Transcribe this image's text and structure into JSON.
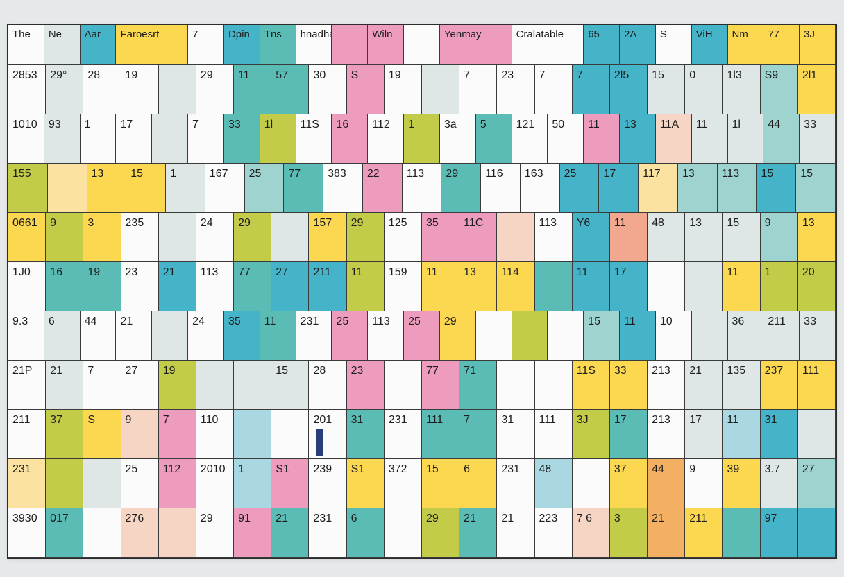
{
  "colors": {
    "yellow": "#fcd850",
    "lime": "#c2cc48",
    "teal": "#5bbcb6",
    "cyan": "#45b4c8",
    "pink": "#ee9cbd",
    "peach": "#f7d5c5",
    "orange": "#f4b062",
    "mint": "#9ed3d0",
    "ltgray": "#dfe6e6",
    "white": "#fbfbfb",
    "ltyellow": "#fbe2a0",
    "salmon": "#f2a88e",
    "ltblue": "#a9d8e2"
  },
  "grid": {
    "rows": [
      {
        "cells": [
          {
            "t": "The",
            "c": "white"
          },
          {
            "t": "Ne",
            "c": "ltgray"
          },
          {
            "t": "Aar",
            "c": "cyan"
          },
          {
            "t": "Faroesrt",
            "c": "yellow",
            "span": 2
          },
          {
            "t": "7",
            "c": "white"
          },
          {
            "t": "Dpin",
            "c": "cyan"
          },
          {
            "t": "Tns",
            "c": "teal"
          },
          {
            "t": "hnadhaur",
            "c": "white"
          },
          {
            "t": "",
            "c": "pink"
          },
          {
            "t": "Wiln",
            "c": "pink"
          },
          {
            "t": "",
            "c": "white"
          },
          {
            "t": "Yenmay",
            "c": "pink",
            "span": 2
          },
          {
            "t": "Cralatable",
            "c": "white",
            "span": 2
          },
          {
            "t": "65",
            "c": "cyan"
          },
          {
            "t": "2A",
            "c": "cyan"
          },
          {
            "t": "S",
            "c": "white"
          },
          {
            "t": "ViH",
            "c": "cyan"
          },
          {
            "t": "Nm",
            "c": "yellow"
          },
          {
            "t": "77",
            "c": "yellow"
          },
          {
            "t": "3J",
            "c": "yellow"
          }
        ]
      },
      {
        "cells": [
          {
            "t": "2853",
            "c": "white"
          },
          {
            "t": "29°",
            "c": "ltgray"
          },
          {
            "t": "28",
            "c": "white"
          },
          {
            "t": "19",
            "c": "white"
          },
          {
            "t": "",
            "c": "ltgray"
          },
          {
            "t": "29",
            "c": "white"
          },
          {
            "t": "11",
            "c": "teal"
          },
          {
            "t": "57",
            "c": "teal"
          },
          {
            "t": "30",
            "c": "white"
          },
          {
            "t": "S",
            "c": "pink"
          },
          {
            "t": "19",
            "c": "white"
          },
          {
            "t": "",
            "c": "ltgray"
          },
          {
            "t": "7",
            "c": "white"
          },
          {
            "t": "23",
            "c": "white"
          },
          {
            "t": "7",
            "c": "white"
          },
          {
            "t": "7",
            "c": "cyan"
          },
          {
            "t": "2l5",
            "c": "cyan"
          },
          {
            "t": "15",
            "c": "ltgray"
          },
          {
            "t": "0",
            "c": "ltgray"
          },
          {
            "t": "1l3",
            "c": "ltgray"
          },
          {
            "t": "S9",
            "c": "mint"
          },
          {
            "t": "2l1",
            "c": "yellow"
          }
        ]
      },
      {
        "cells": [
          {
            "t": "1010",
            "c": "white"
          },
          {
            "t": "93",
            "c": "ltgray"
          },
          {
            "t": "1",
            "c": "white"
          },
          {
            "t": "17",
            "c": "white"
          },
          {
            "t": "",
            "c": "ltgray"
          },
          {
            "t": "7",
            "c": "white"
          },
          {
            "t": "33",
            "c": "teal"
          },
          {
            "t": "1l",
            "c": "lime"
          },
          {
            "t": "11S",
            "c": "white"
          },
          {
            "t": "16",
            "c": "pink"
          },
          {
            "t": "112",
            "c": "white"
          },
          {
            "t": "1",
            "c": "lime"
          },
          {
            "t": "3a",
            "c": "white"
          },
          {
            "t": "5",
            "c": "teal"
          },
          {
            "t": "121",
            "c": "white"
          },
          {
            "t": "50",
            "c": "white"
          },
          {
            "t": "11",
            "c": "pink"
          },
          {
            "t": "13",
            "c": "cyan"
          },
          {
            "t": "11A",
            "c": "peach"
          },
          {
            "t": "11",
            "c": "ltgray"
          },
          {
            "t": "1l",
            "c": "ltgray"
          },
          {
            "t": "44",
            "c": "mint"
          },
          {
            "t": "33",
            "c": "ltgray"
          }
        ]
      },
      {
        "cells": [
          {
            "t": "155",
            "c": "lime"
          },
          {
            "t": "",
            "c": "ltyellow"
          },
          {
            "t": "13",
            "c": "yellow"
          },
          {
            "t": "15",
            "c": "yellow"
          },
          {
            "t": "1",
            "c": "ltgray"
          },
          {
            "t": "167",
            "c": "white"
          },
          {
            "t": "25",
            "c": "mint"
          },
          {
            "t": "77",
            "c": "teal"
          },
          {
            "t": "383",
            "c": "white"
          },
          {
            "t": "22",
            "c": "pink"
          },
          {
            "t": "113",
            "c": "white"
          },
          {
            "t": "29",
            "c": "teal"
          },
          {
            "t": "116",
            "c": "white"
          },
          {
            "t": "163",
            "c": "white"
          },
          {
            "t": "25",
            "c": "cyan"
          },
          {
            "t": "17",
            "c": "cyan"
          },
          {
            "t": "117",
            "c": "ltyellow"
          },
          {
            "t": "13",
            "c": "mint"
          },
          {
            "t": "113",
            "c": "mint"
          },
          {
            "t": "15",
            "c": "cyan"
          },
          {
            "t": "15",
            "c": "mint"
          }
        ]
      },
      {
        "cells": [
          {
            "t": "0661",
            "c": "yellow"
          },
          {
            "t": "9",
            "c": "lime"
          },
          {
            "t": "3",
            "c": "yellow"
          },
          {
            "t": "235",
            "c": "white"
          },
          {
            "t": "",
            "c": "ltgray"
          },
          {
            "t": "24",
            "c": "white"
          },
          {
            "t": "29",
            "c": "lime"
          },
          {
            "t": "",
            "c": "ltgray"
          },
          {
            "t": "157",
            "c": "yellow"
          },
          {
            "t": "29",
            "c": "lime"
          },
          {
            "t": "125",
            "c": "white"
          },
          {
            "t": "35",
            "c": "pink"
          },
          {
            "t": "11C",
            "c": "pink"
          },
          {
            "t": "",
            "c": "peach"
          },
          {
            "t": "113",
            "c": "white"
          },
          {
            "t": "Y6",
            "c": "cyan"
          },
          {
            "t": "11",
            "c": "salmon"
          },
          {
            "t": "48",
            "c": "ltgray"
          },
          {
            "t": "13",
            "c": "ltgray"
          },
          {
            "t": "15",
            "c": "ltgray"
          },
          {
            "t": "9",
            "c": "mint"
          },
          {
            "t": "13",
            "c": "yellow"
          }
        ]
      },
      {
        "cells": [
          {
            "t": "1J0",
            "c": "white"
          },
          {
            "t": "16",
            "c": "teal"
          },
          {
            "t": "19",
            "c": "teal"
          },
          {
            "t": "23",
            "c": "white"
          },
          {
            "t": "21",
            "c": "cyan"
          },
          {
            "t": "113",
            "c": "white"
          },
          {
            "t": "77",
            "c": "teal"
          },
          {
            "t": "27",
            "c": "cyan"
          },
          {
            "t": "211",
            "c": "cyan"
          },
          {
            "t": "11",
            "c": "lime"
          },
          {
            "t": "159",
            "c": "white"
          },
          {
            "t": "11",
            "c": "yellow"
          },
          {
            "t": "13",
            "c": "yellow"
          },
          {
            "t": "114",
            "c": "yellow"
          },
          {
            "t": "",
            "c": "teal"
          },
          {
            "t": "11",
            "c": "cyan"
          },
          {
            "t": "17",
            "c": "cyan"
          },
          {
            "t": "",
            "c": "white"
          },
          {
            "t": "",
            "c": "ltgray"
          },
          {
            "t": "11",
            "c": "yellow"
          },
          {
            "t": "1",
            "c": "lime"
          },
          {
            "t": "20",
            "c": "lime"
          }
        ]
      },
      {
        "cells": [
          {
            "t": "9.3",
            "c": "white"
          },
          {
            "t": "6",
            "c": "ltgray"
          },
          {
            "t": "44",
            "c": "white"
          },
          {
            "t": "21",
            "c": "white"
          },
          {
            "t": "",
            "c": "ltgray"
          },
          {
            "t": "24",
            "c": "white"
          },
          {
            "t": "35",
            "c": "cyan"
          },
          {
            "t": "11",
            "c": "teal"
          },
          {
            "t": "231",
            "c": "white"
          },
          {
            "t": "25",
            "c": "pink"
          },
          {
            "t": "113",
            "c": "white"
          },
          {
            "t": "25",
            "c": "pink"
          },
          {
            "t": "29",
            "c": "yellow"
          },
          {
            "t": "",
            "c": "white"
          },
          {
            "t": "",
            "c": "lime"
          },
          {
            "t": "",
            "c": "white"
          },
          {
            "t": "15",
            "c": "mint"
          },
          {
            "t": "11",
            "c": "cyan"
          },
          {
            "t": "10",
            "c": "white"
          },
          {
            "t": "",
            "c": "ltgray"
          },
          {
            "t": "36",
            "c": "ltgray"
          },
          {
            "t": "211",
            "c": "ltgray"
          },
          {
            "t": "33",
            "c": "ltgray"
          }
        ]
      },
      {
        "cells": [
          {
            "t": "21P",
            "c": "white"
          },
          {
            "t": "21",
            "c": "ltgray"
          },
          {
            "t": "7",
            "c": "white"
          },
          {
            "t": "27",
            "c": "white"
          },
          {
            "t": "19",
            "c": "lime"
          },
          {
            "t": "",
            "c": "ltgray"
          },
          {
            "t": "",
            "c": "ltgray"
          },
          {
            "t": "15",
            "c": "ltgray"
          },
          {
            "t": "28",
            "c": "white"
          },
          {
            "t": "23",
            "c": "pink"
          },
          {
            "t": "",
            "c": "white"
          },
          {
            "t": "77",
            "c": "pink"
          },
          {
            "t": "71",
            "c": "teal"
          },
          {
            "t": "",
            "c": "white"
          },
          {
            "t": "",
            "c": "white"
          },
          {
            "t": "11S",
            "c": "yellow"
          },
          {
            "t": "33",
            "c": "yellow"
          },
          {
            "t": "213",
            "c": "white"
          },
          {
            "t": "21",
            "c": "ltgray"
          },
          {
            "t": "135",
            "c": "ltgray"
          },
          {
            "t": "237",
            "c": "yellow"
          },
          {
            "t": "111",
            "c": "yellow"
          }
        ]
      },
      {
        "cells": [
          {
            "t": "211",
            "c": "white"
          },
          {
            "t": "37",
            "c": "lime"
          },
          {
            "t": "S",
            "c": "yellow"
          },
          {
            "t": "9",
            "c": "peach"
          },
          {
            "t": "7",
            "c": "pink"
          },
          {
            "t": "110",
            "c": "white"
          },
          {
            "t": "",
            "c": "ltblue"
          },
          {
            "t": "",
            "c": "white"
          },
          {
            "t": "201",
            "c": "white"
          },
          {
            "t": "31",
            "c": "teal"
          },
          {
            "t": "231",
            "c": "white"
          },
          {
            "t": "111",
            "c": "teal"
          },
          {
            "t": "7",
            "c": "teal"
          },
          {
            "t": "31",
            "c": "white"
          },
          {
            "t": "111",
            "c": "white"
          },
          {
            "t": "3J",
            "c": "lime"
          },
          {
            "t": "17",
            "c": "teal"
          },
          {
            "t": "213",
            "c": "white"
          },
          {
            "t": "17",
            "c": "ltgray"
          },
          {
            "t": "11",
            "c": "ltblue"
          },
          {
            "t": "31",
            "c": "cyan"
          },
          {
            "t": "",
            "c": "ltgray"
          }
        ]
      },
      {
        "cells": [
          {
            "t": "231",
            "c": "ltyellow"
          },
          {
            "t": "",
            "c": "lime"
          },
          {
            "t": "",
            "c": "ltgray"
          },
          {
            "t": "25",
            "c": "white"
          },
          {
            "t": "112",
            "c": "pink"
          },
          {
            "t": "2010",
            "c": "white"
          },
          {
            "t": "1",
            "c": "ltblue"
          },
          {
            "t": "S1",
            "c": "pink"
          },
          {
            "t": "239",
            "c": "white"
          },
          {
            "t": "S1",
            "c": "yellow"
          },
          {
            "t": "372",
            "c": "white"
          },
          {
            "t": "15",
            "c": "yellow"
          },
          {
            "t": "6",
            "c": "yellow"
          },
          {
            "t": "231",
            "c": "white"
          },
          {
            "t": "48",
            "c": "ltblue"
          },
          {
            "t": "",
            "c": "white"
          },
          {
            "t": "37",
            "c": "yellow"
          },
          {
            "t": "44",
            "c": "orange"
          },
          {
            "t": "9",
            "c": "white"
          },
          {
            "t": "39",
            "c": "yellow"
          },
          {
            "t": "3.7",
            "c": "ltgray"
          },
          {
            "t": "27",
            "c": "mint"
          }
        ]
      },
      {
        "cells": [
          {
            "t": "3930",
            "c": "white"
          },
          {
            "t": "017",
            "c": "teal"
          },
          {
            "t": "",
            "c": "white"
          },
          {
            "t": "276",
            "c": "peach"
          },
          {
            "t": "",
            "c": "peach"
          },
          {
            "t": "29",
            "c": "white"
          },
          {
            "t": "91",
            "c": "pink"
          },
          {
            "t": "21",
            "c": "teal"
          },
          {
            "t": "231",
            "c": "white"
          },
          {
            "t": "6",
            "c": "teal"
          },
          {
            "t": "",
            "c": "white"
          },
          {
            "t": "29",
            "c": "lime"
          },
          {
            "t": "21",
            "c": "teal"
          },
          {
            "t": "21",
            "c": "white"
          },
          {
            "t": "223",
            "c": "white"
          },
          {
            "t": "7 6",
            "c": "peach"
          },
          {
            "t": "3",
            "c": "lime"
          },
          {
            "t": "21",
            "c": "orange"
          },
          {
            "t": "211",
            "c": "yellow"
          },
          {
            "t": "",
            "c": "teal"
          },
          {
            "t": "97",
            "c": "cyan"
          },
          {
            "t": "",
            "c": "cyan"
          }
        ]
      }
    ]
  }
}
